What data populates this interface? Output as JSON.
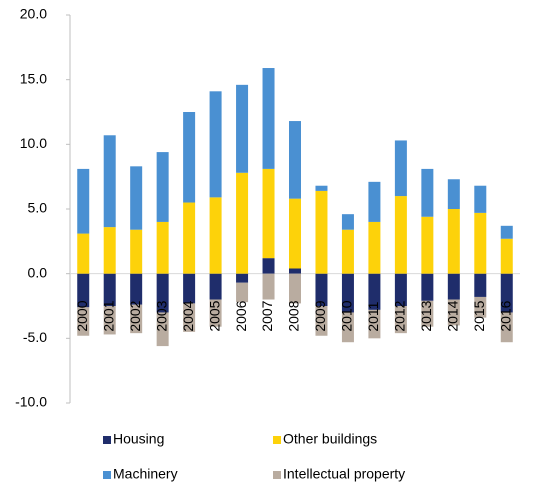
{
  "chart_data": {
    "type": "stacked-bar",
    "categories": [
      "2000",
      "2001",
      "2002",
      "2003",
      "2004",
      "2005",
      "2006",
      "2007",
      "2008",
      "2009",
      "2010",
      "2011",
      "2012",
      "2013",
      "2014",
      "2015",
      "2016"
    ],
    "series": [
      {
        "name": "Housing",
        "color": "#1f2d6b",
        "values": [
          -2.6,
          -2.5,
          -2.4,
          -3.0,
          -2.3,
          -2.0,
          -0.7,
          1.2,
          0.4,
          -2.5,
          -3.0,
          -2.8,
          -2.5,
          -2.1,
          -2.0,
          -1.8,
          -3.0
        ]
      },
      {
        "name": "Other buildings",
        "color": "#fdd20a",
        "values": [
          3.1,
          3.6,
          3.4,
          4.0,
          5.5,
          5.9,
          7.8,
          6.9,
          5.4,
          6.4,
          3.4,
          4.0,
          6.0,
          4.4,
          5.0,
          4.7,
          2.7
        ]
      },
      {
        "name": "Machinery",
        "color": "#4a90d2",
        "values": [
          5.0,
          7.1,
          4.9,
          5.4,
          7.0,
          8.2,
          6.8,
          7.8,
          6.0,
          0.4,
          1.2,
          3.1,
          4.3,
          3.7,
          2.3,
          2.1,
          1.0
        ]
      },
      {
        "name": "Intellectual property",
        "color": "#b9aca0",
        "values": [
          -2.2,
          -2.2,
          -2.2,
          -2.6,
          -2.2,
          -2.1,
          -1.5,
          -2.0,
          -2.3,
          -2.3,
          -2.3,
          -2.2,
          -2.1,
          -2.0,
          -2.0,
          -1.6,
          -2.3
        ]
      }
    ],
    "ylim": [
      -10,
      20
    ],
    "yticks": [
      {
        "value": -10,
        "label": "-10.0"
      },
      {
        "value": -5,
        "label": "-5.0"
      },
      {
        "value": 0,
        "label": "0.0"
      },
      {
        "value": 5,
        "label": "5.0"
      },
      {
        "value": 10,
        "label": "10.0"
      },
      {
        "value": 15,
        "label": "15.0"
      },
      {
        "value": 20,
        "label": "20.0"
      }
    ],
    "grid": false
  }
}
